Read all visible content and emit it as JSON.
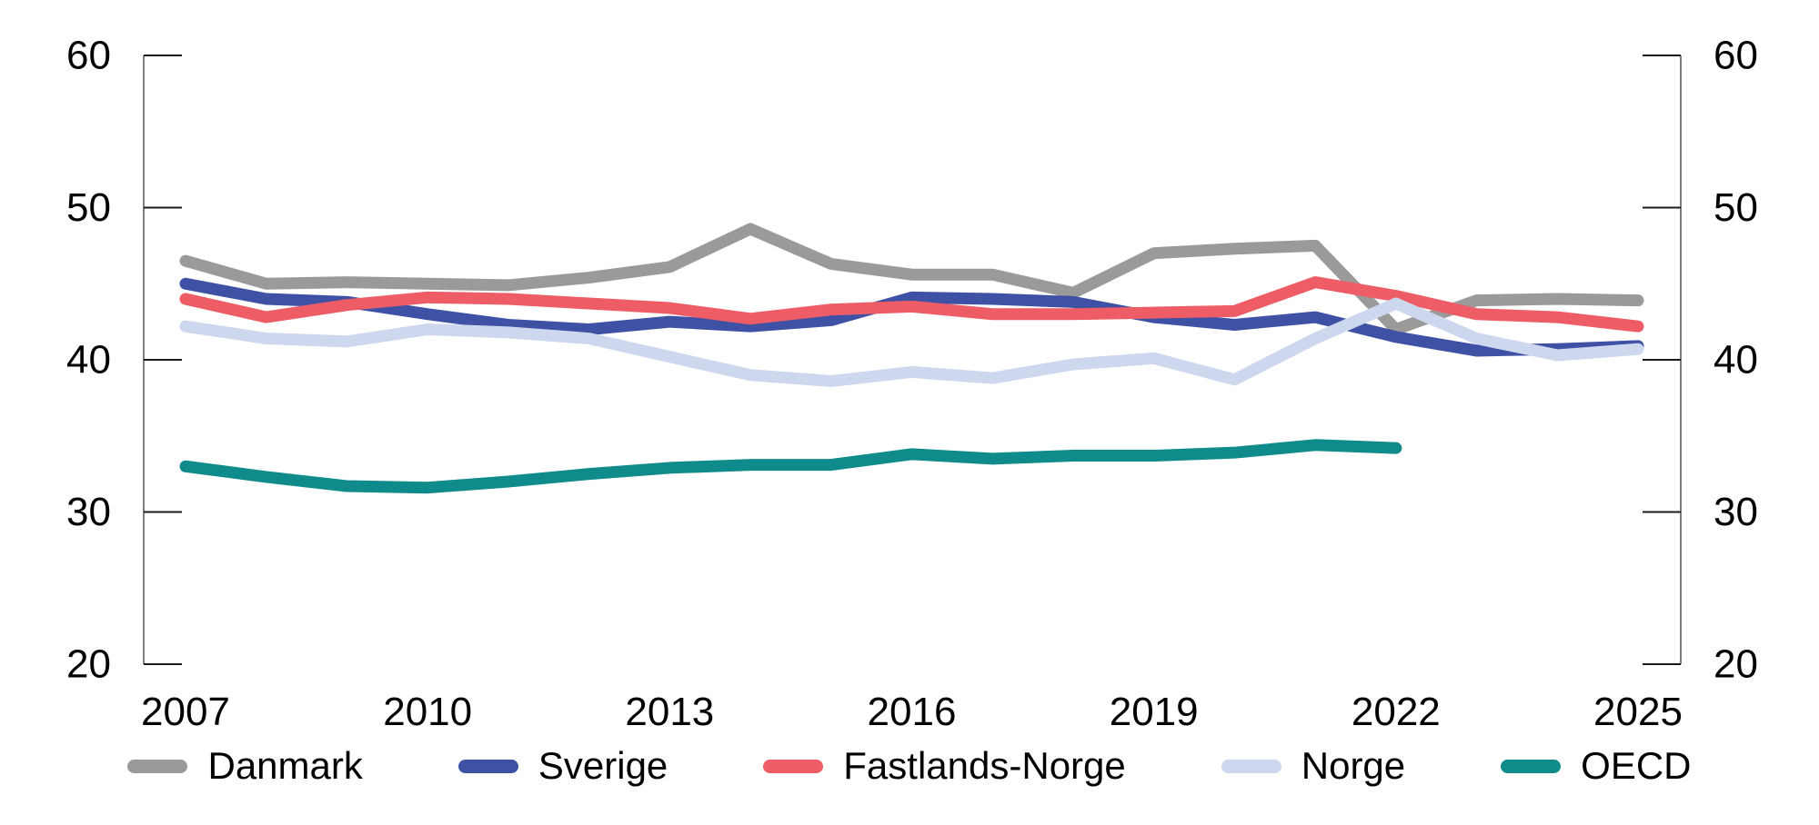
{
  "chart_data": {
    "type": "line",
    "title": "",
    "xlabel": "",
    "ylabel": "",
    "x": [
      2007,
      2008,
      2009,
      2010,
      2011,
      2012,
      2013,
      2014,
      2015,
      2016,
      2017,
      2018,
      2019,
      2020,
      2021,
      2022,
      2023,
      2024,
      2025
    ],
    "x_tick_labels": [
      "2007",
      "2010",
      "2013",
      "2016",
      "2019",
      "2022",
      "2025"
    ],
    "y_ticks": [
      "60",
      "50",
      "40",
      "30",
      "20"
    ],
    "ylim": [
      20,
      60
    ],
    "xlim": [
      2007,
      2025
    ],
    "grid": false,
    "legend_position": "bottom",
    "dual_y_axis": true,
    "axis_color": "#7f7f7f",
    "tick_color": "#1a1a1a",
    "text_color": "#000000",
    "series": [
      {
        "name": "Danmark",
        "color": "#9A9A9A",
        "values": [
          46.5,
          45.0,
          45.1,
          45.0,
          44.9,
          45.4,
          46.1,
          48.6,
          46.3,
          45.6,
          45.6,
          44.4,
          47.0,
          47.3,
          47.5,
          42.0,
          43.9,
          44.0,
          43.9
        ]
      },
      {
        "name": "Sverige",
        "color": "#3F51A5",
        "values": [
          45.0,
          44.0,
          43.8,
          43.0,
          42.3,
          42.0,
          42.5,
          42.2,
          42.6,
          44.1,
          44.0,
          43.8,
          42.8,
          42.3,
          42.8,
          41.5,
          40.6,
          40.7,
          40.9
        ]
      },
      {
        "name": "Fastlands-Norge",
        "color": "#EE5C66",
        "values": [
          44.0,
          42.8,
          43.6,
          44.1,
          44.0,
          43.7,
          43.4,
          42.7,
          43.3,
          43.5,
          43.0,
          43.0,
          43.1,
          43.2,
          45.1,
          44.2,
          43.0,
          42.8,
          42.2
        ]
      },
      {
        "name": "Norge",
        "color": "#CDD7EE",
        "values": [
          42.2,
          41.4,
          41.2,
          42.0,
          41.8,
          41.4,
          40.2,
          39.0,
          38.6,
          39.2,
          38.8,
          39.7,
          40.1,
          38.7,
          41.4,
          43.7,
          41.4,
          40.3,
          40.7
        ]
      },
      {
        "name": "OECD",
        "color": "#0F8B8B",
        "values": [
          33.0,
          32.3,
          31.7,
          31.6,
          32.0,
          32.5,
          32.9,
          33.1,
          33.1,
          33.8,
          33.5,
          33.7,
          33.7,
          33.9,
          34.4,
          34.2,
          null,
          null,
          null
        ]
      }
    ]
  }
}
